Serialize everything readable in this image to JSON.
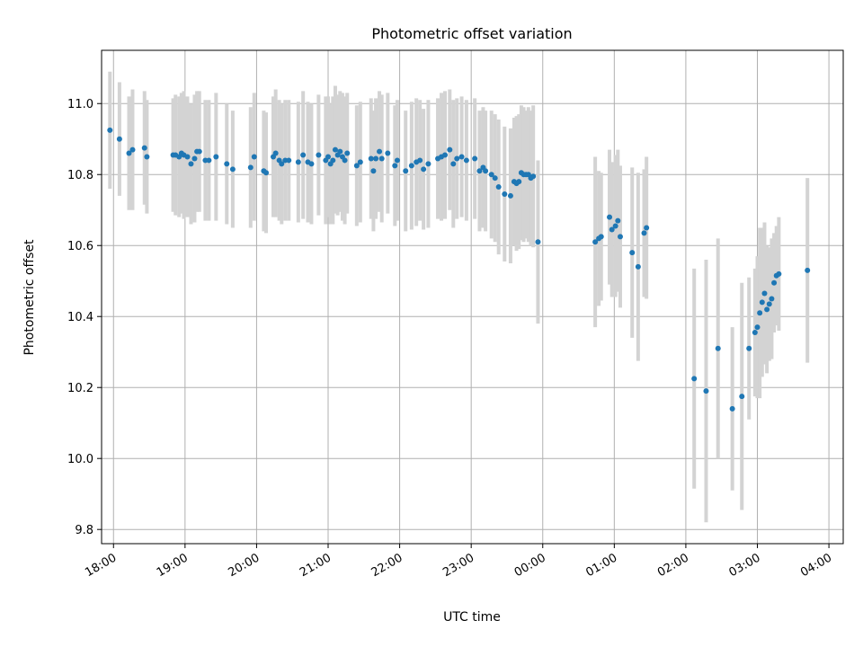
{
  "chart_data": {
    "type": "scatter",
    "title": "Photometric offset variation",
    "xlabel": "UTC time",
    "ylabel": "Photometric offset",
    "x_unit": "UTC time (hours)",
    "xlim": [
      "17:50",
      "04:12"
    ],
    "ylim": [
      9.76,
      11.15
    ],
    "x_ticks": [
      "18:00",
      "19:00",
      "20:00",
      "21:00",
      "22:00",
      "23:00",
      "00:00",
      "01:00",
      "02:00",
      "03:00",
      "04:00"
    ],
    "y_ticks": [
      9.8,
      10.0,
      10.2,
      10.4,
      10.6,
      10.8,
      11.0
    ],
    "grid": true,
    "point_color": "#1f77b4",
    "errorbar_color": "#d3d3d3",
    "series": [
      {
        "points": [
          {
            "x": "17:57",
            "y": 10.925,
            "yerr": 0.165
          },
          {
            "x": "18:05",
            "y": 10.9,
            "yerr": 0.16
          },
          {
            "x": "18:13",
            "y": 10.86,
            "yerr": 0.16
          },
          {
            "x": "18:16",
            "y": 10.87,
            "yerr": 0.17
          },
          {
            "x": "18:26",
            "y": 10.875,
            "yerr": 0.16
          },
          {
            "x": "18:28",
            "y": 10.85,
            "yerr": 0.16
          },
          {
            "x": "18:50",
            "y": 10.855,
            "yerr": 0.16
          },
          {
            "x": "18:52",
            "y": 10.855,
            "yerr": 0.17
          },
          {
            "x": "18:55",
            "y": 10.85,
            "yerr": 0.17
          },
          {
            "x": "18:57",
            "y": 10.86,
            "yerr": 0.17
          },
          {
            "x": "18:59",
            "y": 10.855,
            "yerr": 0.18
          },
          {
            "x": "19:02",
            "y": 10.85,
            "yerr": 0.17
          },
          {
            "x": "19:05",
            "y": 10.83,
            "yerr": 0.17
          },
          {
            "x": "19:08",
            "y": 10.845,
            "yerr": 0.18
          },
          {
            "x": "19:10",
            "y": 10.865,
            "yerr": 0.17
          },
          {
            "x": "19:12",
            "y": 10.865,
            "yerr": 0.17
          },
          {
            "x": "19:17",
            "y": 10.84,
            "yerr": 0.17
          },
          {
            "x": "19:20",
            "y": 10.84,
            "yerr": 0.17
          },
          {
            "x": "19:26",
            "y": 10.85,
            "yerr": 0.18
          },
          {
            "x": "19:35",
            "y": 10.83,
            "yerr": 0.17
          },
          {
            "x": "19:40",
            "y": 10.815,
            "yerr": 0.165
          },
          {
            "x": "19:55",
            "y": 10.82,
            "yerr": 0.17
          },
          {
            "x": "19:58",
            "y": 10.85,
            "yerr": 0.18
          },
          {
            "x": "20:06",
            "y": 10.81,
            "yerr": 0.17
          },
          {
            "x": "20:08",
            "y": 10.805,
            "yerr": 0.17
          },
          {
            "x": "20:14",
            "y": 10.85,
            "yerr": 0.17
          },
          {
            "x": "20:16",
            "y": 10.86,
            "yerr": 0.18
          },
          {
            "x": "20:19",
            "y": 10.84,
            "yerr": 0.17
          },
          {
            "x": "20:21",
            "y": 10.83,
            "yerr": 0.17
          },
          {
            "x": "20:24",
            "y": 10.84,
            "yerr": 0.17
          },
          {
            "x": "20:27",
            "y": 10.84,
            "yerr": 0.17
          },
          {
            "x": "20:35",
            "y": 10.835,
            "yerr": 0.17
          },
          {
            "x": "20:39",
            "y": 10.855,
            "yerr": 0.18
          },
          {
            "x": "20:43",
            "y": 10.835,
            "yerr": 0.17
          },
          {
            "x": "20:46",
            "y": 10.83,
            "yerr": 0.17
          },
          {
            "x": "20:52",
            "y": 10.855,
            "yerr": 0.17
          },
          {
            "x": "20:58",
            "y": 10.84,
            "yerr": 0.18
          },
          {
            "x": "21:00",
            "y": 10.85,
            "yerr": 0.17
          },
          {
            "x": "21:02",
            "y": 10.83,
            "yerr": 0.17
          },
          {
            "x": "21:04",
            "y": 10.84,
            "yerr": 0.18
          },
          {
            "x": "21:06",
            "y": 10.87,
            "yerr": 0.18
          },
          {
            "x": "21:08",
            "y": 10.855,
            "yerr": 0.17
          },
          {
            "x": "21:10",
            "y": 10.865,
            "yerr": 0.17
          },
          {
            "x": "21:12",
            "y": 10.85,
            "yerr": 0.18
          },
          {
            "x": "21:14",
            "y": 10.84,
            "yerr": 0.18
          },
          {
            "x": "21:16",
            "y": 10.86,
            "yerr": 0.17
          },
          {
            "x": "21:24",
            "y": 10.825,
            "yerr": 0.17
          },
          {
            "x": "21:27",
            "y": 10.835,
            "yerr": 0.17
          },
          {
            "x": "21:36",
            "y": 10.845,
            "yerr": 0.17
          },
          {
            "x": "21:38",
            "y": 10.81,
            "yerr": 0.17
          },
          {
            "x": "21:40",
            "y": 10.845,
            "yerr": 0.17
          },
          {
            "x": "21:43",
            "y": 10.865,
            "yerr": 0.17
          },
          {
            "x": "21:45",
            "y": 10.845,
            "yerr": 0.18
          },
          {
            "x": "21:50",
            "y": 10.86,
            "yerr": 0.17
          },
          {
            "x": "21:56",
            "y": 10.825,
            "yerr": 0.17
          },
          {
            "x": "21:58",
            "y": 10.84,
            "yerr": 0.17
          },
          {
            "x": "22:05",
            "y": 10.81,
            "yerr": 0.17
          },
          {
            "x": "22:10",
            "y": 10.825,
            "yerr": 0.18
          },
          {
            "x": "22:14",
            "y": 10.835,
            "yerr": 0.18
          },
          {
            "x": "22:17",
            "y": 10.84,
            "yerr": 0.17
          },
          {
            "x": "22:20",
            "y": 10.815,
            "yerr": 0.17
          },
          {
            "x": "22:24",
            "y": 10.83,
            "yerr": 0.18
          },
          {
            "x": "22:32",
            "y": 10.845,
            "yerr": 0.17
          },
          {
            "x": "22:35",
            "y": 10.85,
            "yerr": 0.18
          },
          {
            "x": "22:38",
            "y": 10.855,
            "yerr": 0.18
          },
          {
            "x": "22:42",
            "y": 10.87,
            "yerr": 0.17
          },
          {
            "x": "22:45",
            "y": 10.83,
            "yerr": 0.18
          },
          {
            "x": "22:48",
            "y": 10.845,
            "yerr": 0.17
          },
          {
            "x": "22:52",
            "y": 10.85,
            "yerr": 0.17
          },
          {
            "x": "22:56",
            "y": 10.84,
            "yerr": 0.17
          },
          {
            "x": "23:03",
            "y": 10.845,
            "yerr": 0.17
          },
          {
            "x": "23:07",
            "y": 10.81,
            "yerr": 0.17
          },
          {
            "x": "23:10",
            "y": 10.82,
            "yerr": 0.17
          },
          {
            "x": "23:12",
            "y": 10.81,
            "yerr": 0.17
          },
          {
            "x": "23:17",
            "y": 10.8,
            "yerr": 0.18
          },
          {
            "x": "23:20",
            "y": 10.79,
            "yerr": 0.18
          },
          {
            "x": "23:23",
            "y": 10.765,
            "yerr": 0.19
          },
          {
            "x": "23:28",
            "y": 10.745,
            "yerr": 0.19
          },
          {
            "x": "23:33",
            "y": 10.74,
            "yerr": 0.19
          },
          {
            "x": "23:36",
            "y": 10.78,
            "yerr": 0.18
          },
          {
            "x": "23:38",
            "y": 10.775,
            "yerr": 0.19
          },
          {
            "x": "23:40",
            "y": 10.78,
            "yerr": 0.19
          },
          {
            "x": "23:42",
            "y": 10.805,
            "yerr": 0.19
          },
          {
            "x": "23:44",
            "y": 10.8,
            "yerr": 0.19
          },
          {
            "x": "23:46",
            "y": 10.8,
            "yerr": 0.18
          },
          {
            "x": "23:48",
            "y": 10.8,
            "yerr": 0.19
          },
          {
            "x": "23:50",
            "y": 10.79,
            "yerr": 0.19
          },
          {
            "x": "23:52",
            "y": 10.795,
            "yerr": 0.2
          },
          {
            "x": "23:56",
            "y": 10.61,
            "yerr": 0.23
          },
          {
            "x": "00:44",
            "y": 10.61,
            "yerr": 0.24
          },
          {
            "x": "00:47",
            "y": 10.62,
            "yerr": 0.19
          },
          {
            "x": "00:49",
            "y": 10.625,
            "yerr": 0.18
          },
          {
            "x": "00:56",
            "y": 10.68,
            "yerr": 0.19
          },
          {
            "x": "00:58",
            "y": 10.645,
            "yerr": 0.19
          },
          {
            "x": "01:01",
            "y": 10.655,
            "yerr": 0.2
          },
          {
            "x": "01:03",
            "y": 10.67,
            "yerr": 0.2
          },
          {
            "x": "01:05",
            "y": 10.625,
            "yerr": 0.2
          },
          {
            "x": "01:15",
            "y": 10.58,
            "yerr": 0.24
          },
          {
            "x": "01:20",
            "y": 10.54,
            "yerr": 0.265
          },
          {
            "x": "01:25",
            "y": 10.635,
            "yerr": 0.18
          },
          {
            "x": "01:27",
            "y": 10.65,
            "yerr": 0.2
          },
          {
            "x": "02:07",
            "y": 10.225,
            "yerr": 0.31
          },
          {
            "x": "02:17",
            "y": 10.19,
            "yerr": 0.37
          },
          {
            "x": "02:27",
            "y": 10.31,
            "yerr": 0.31
          },
          {
            "x": "02:39",
            "y": 10.14,
            "yerr": 0.23
          },
          {
            "x": "02:47",
            "y": 10.175,
            "yerr": 0.32
          },
          {
            "x": "02:53",
            "y": 10.31,
            "yerr": 0.2
          },
          {
            "x": "02:58",
            "y": 10.355,
            "yerr": 0.18
          },
          {
            "x": "03:00",
            "y": 10.37,
            "yerr": 0.2
          },
          {
            "x": "03:02",
            "y": 10.41,
            "yerr": 0.24
          },
          {
            "x": "03:04",
            "y": 10.44,
            "yerr": 0.21
          },
          {
            "x": "03:06",
            "y": 10.465,
            "yerr": 0.2
          },
          {
            "x": "03:08",
            "y": 10.42,
            "yerr": 0.18
          },
          {
            "x": "03:10",
            "y": 10.435,
            "yerr": 0.16
          },
          {
            "x": "03:12",
            "y": 10.45,
            "yerr": 0.17
          },
          {
            "x": "03:14",
            "y": 10.495,
            "yerr": 0.14
          },
          {
            "x": "03:16",
            "y": 10.515,
            "yerr": 0.14
          },
          {
            "x": "03:18",
            "y": 10.52,
            "yerr": 0.16
          },
          {
            "x": "03:42",
            "y": 10.53,
            "yerr": 0.26
          }
        ]
      }
    ]
  }
}
